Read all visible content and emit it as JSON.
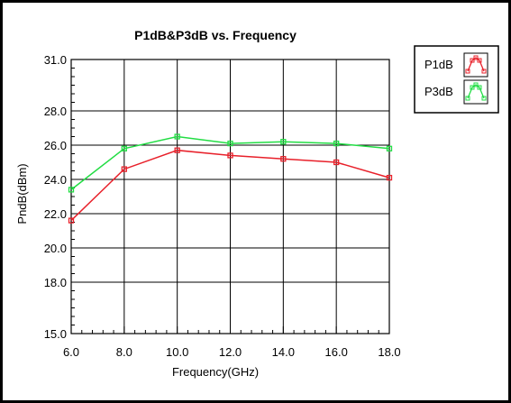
{
  "chart_data": {
    "type": "line",
    "title": "P1dB&P3dB vs. Frequency",
    "xlabel": "Frequency(GHz)",
    "ylabel": "PndB(dBm)",
    "xlim": [
      6.0,
      18.0
    ],
    "ylim": [
      15.0,
      31.0
    ],
    "x": [
      6.0,
      8.0,
      10.0,
      12.0,
      14.0,
      16.0,
      18.0
    ],
    "x_tick_labels": [
      "6.0",
      "8.0",
      "10.0",
      "12.0",
      "14.0",
      "16.0",
      "18.0"
    ],
    "y_ticks": [
      15.0,
      18.0,
      20.0,
      22.0,
      24.0,
      26.0,
      28.0,
      31.0
    ],
    "y_tick_labels": [
      "15.0",
      "18.0",
      "20.0",
      "22.0",
      "24.0",
      "26.0",
      "28.0",
      "31.0"
    ],
    "grid": true,
    "legend_position": "top-right-outside",
    "series": [
      {
        "name": "P1dB",
        "color": "#e8202a",
        "values": [
          21.6,
          24.6,
          25.7,
          25.4,
          25.2,
          25.0,
          24.1
        ]
      },
      {
        "name": "P3dB",
        "color": "#22dd44",
        "values": [
          23.4,
          25.8,
          26.5,
          26.1,
          26.2,
          26.1,
          25.8
        ]
      }
    ]
  }
}
